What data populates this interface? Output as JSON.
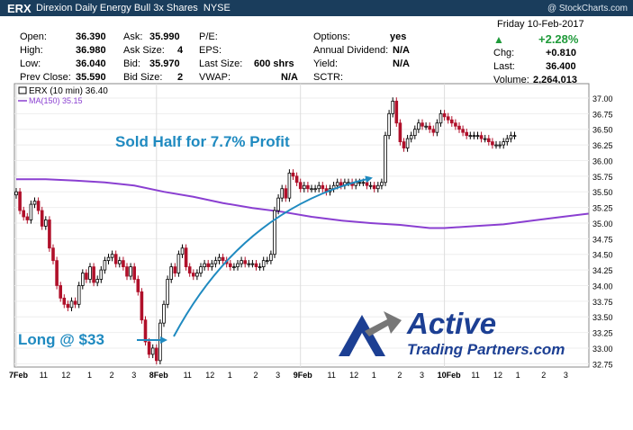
{
  "header": {
    "symbol": "ERX",
    "name": "Direxion Daily Energy Bull 3x Shares",
    "exchange": "NYSE",
    "copyright": "@ StockCharts.com"
  },
  "quote": {
    "open_label": "Open:",
    "open": "36.390",
    "high_label": "High:",
    "high": "36.980",
    "low_label": "Low:",
    "low": "36.040",
    "prev_label": "Prev Close:",
    "prev": "35.590",
    "ask_label": "Ask:",
    "ask": "35.990",
    "asksize_label": "Ask Size:",
    "asksize": "4",
    "bid_label": "Bid:",
    "bid": "35.970",
    "bidsize_label": "Bid Size:",
    "bidsize": "2",
    "pe_label": "P/E:",
    "pe": "",
    "eps_label": "EPS:",
    "eps": "",
    "lastsize_label": "Last Size:",
    "lastsize": "600 shrs",
    "vwap_label": "VWAP:",
    "vwap": "N/A",
    "options_label": "Options:",
    "options": "yes",
    "annual_label": "Annual Dividend:",
    "annual": "N/A",
    "yield_label": "Yield:",
    "yield": "N/A",
    "sctr_label": "SCTR:",
    "sctr": "",
    "date": "Friday  10-Feb-2017",
    "pct": "+2.28%",
    "chg_label": "Chg:",
    "chg": "+0.810",
    "last_label": "Last:",
    "last": "36.400",
    "volume_label": "Volume:",
    "volume": "2,264,013"
  },
  "legend": {
    "price": "ERX (10 min) 36.40",
    "ma": "MA(150) 35.15"
  },
  "annotations": {
    "sold": "Sold Half for 7.7% Profit",
    "long": "Long @  $33"
  },
  "logo": {
    "line1": "Active",
    "line2": "Trading Partners.com"
  },
  "colors": {
    "header_bg": "#1a3d5c",
    "up_candle": "#000000",
    "down_candle": "#b0102a",
    "ma_line": "#8a3fd1",
    "annotation": "#1f8ac0",
    "logo": "#1c3f93",
    "up_arrow": "#1f9a3a"
  },
  "chart_data": {
    "type": "candlestick",
    "interval": "10 min",
    "title": "ERX (10 min) 36.40",
    "ylim": [
      32.5,
      37.1
    ],
    "y_ticks": [
      "37.00",
      "36.75",
      "36.50",
      "36.25",
      "36.00",
      "35.75",
      "35.50",
      "35.25",
      "35.00",
      "34.75",
      "34.50",
      "34.25",
      "34.00",
      "33.75",
      "33.50",
      "33.25",
      "33.00",
      "32.75"
    ],
    "x_ticks": [
      {
        "label": "7Feb",
        "bar": 0
      },
      {
        "label": "11",
        "bar": 7
      },
      {
        "label": "12",
        "bar": 13
      },
      {
        "label": "1",
        "bar": 20
      },
      {
        "label": "2",
        "bar": 26
      },
      {
        "label": "3",
        "bar": 32
      },
      {
        "label": "8Feb",
        "bar": 38
      },
      {
        "label": "11",
        "bar": 46
      },
      {
        "label": "12",
        "bar": 52
      },
      {
        "label": "1",
        "bar": 58
      },
      {
        "label": "2",
        "bar": 65
      },
      {
        "label": "3",
        "bar": 71
      },
      {
        "label": "9Feb",
        "bar": 77
      },
      {
        "label": "11",
        "bar": 85
      },
      {
        "label": "12",
        "bar": 91
      },
      {
        "label": "1",
        "bar": 97
      },
      {
        "label": "2",
        "bar": 104
      },
      {
        "label": "3",
        "bar": 110
      },
      {
        "label": "10Feb",
        "bar": 116
      },
      {
        "label": "11",
        "bar": 124
      },
      {
        "label": "12",
        "bar": 130
      },
      {
        "label": "1",
        "bar": 136
      },
      {
        "label": "2",
        "bar": 143
      },
      {
        "label": "3",
        "bar": 149
      }
    ],
    "closes": [
      35.5,
      35.2,
      35.1,
      35.05,
      35.3,
      35.35,
      35.2,
      34.95,
      35.05,
      34.6,
      34.4,
      34.0,
      33.8,
      33.7,
      33.65,
      33.75,
      33.7,
      34.0,
      34.2,
      34.1,
      34.3,
      34.05,
      34.1,
      34.25,
      34.4,
      34.45,
      34.5,
      34.35,
      34.4,
      34.3,
      34.15,
      34.3,
      34.1,
      33.9,
      33.45,
      33.1,
      32.9,
      33.0,
      32.8,
      33.4,
      33.7,
      34.1,
      34.3,
      34.2,
      34.5,
      34.6,
      34.3,
      34.2,
      34.15,
      34.2,
      34.3,
      34.35,
      34.3,
      34.35,
      34.4,
      34.45,
      34.4,
      34.35,
      34.3,
      34.3,
      34.35,
      34.4,
      34.35,
      34.35,
      34.35,
      34.3,
      34.3,
      34.4,
      34.4,
      34.5,
      35.2,
      35.4,
      35.55,
      35.4,
      35.8,
      35.75,
      35.65,
      35.55,
      35.6,
      35.55,
      35.55,
      35.55,
      35.6,
      35.55,
      35.5,
      35.55,
      35.6,
      35.65,
      35.6,
      35.65,
      35.65,
      35.6,
      35.65,
      35.65,
      35.65,
      35.6,
      35.6,
      35.55,
      35.6,
      35.65,
      36.4,
      36.75,
      36.95,
      36.6,
      36.3,
      36.2,
      36.35,
      36.4,
      36.5,
      36.6,
      36.55,
      36.55,
      36.5,
      36.45,
      36.6,
      36.75,
      36.7,
      36.65,
      36.6,
      36.55,
      36.5,
      36.45,
      36.4,
      36.4,
      36.4,
      36.4,
      36.35,
      36.35,
      36.3,
      36.25,
      36.25,
      36.25,
      36.3,
      36.35,
      36.4,
      36.4
    ],
    "ma150": [
      {
        "bar": 0,
        "y": 35.7
      },
      {
        "bar": 8,
        "y": 35.7
      },
      {
        "bar": 16,
        "y": 35.68
      },
      {
        "bar": 24,
        "y": 35.65
      },
      {
        "bar": 32,
        "y": 35.6
      },
      {
        "bar": 40,
        "y": 35.5
      },
      {
        "bar": 48,
        "y": 35.42
      },
      {
        "bar": 56,
        "y": 35.32
      },
      {
        "bar": 64,
        "y": 35.24
      },
      {
        "bar": 72,
        "y": 35.18
      },
      {
        "bar": 80,
        "y": 35.1
      },
      {
        "bar": 88,
        "y": 35.04
      },
      {
        "bar": 96,
        "y": 35.0
      },
      {
        "bar": 104,
        "y": 34.97
      },
      {
        "bar": 112,
        "y": 34.92
      },
      {
        "bar": 116,
        "y": 34.92
      },
      {
        "bar": 124,
        "y": 34.95
      },
      {
        "bar": 132,
        "y": 34.98
      },
      {
        "bar": 140,
        "y": 35.04
      },
      {
        "bar": 148,
        "y": 35.1
      },
      {
        "bar": 155,
        "y": 35.15
      }
    ]
  }
}
